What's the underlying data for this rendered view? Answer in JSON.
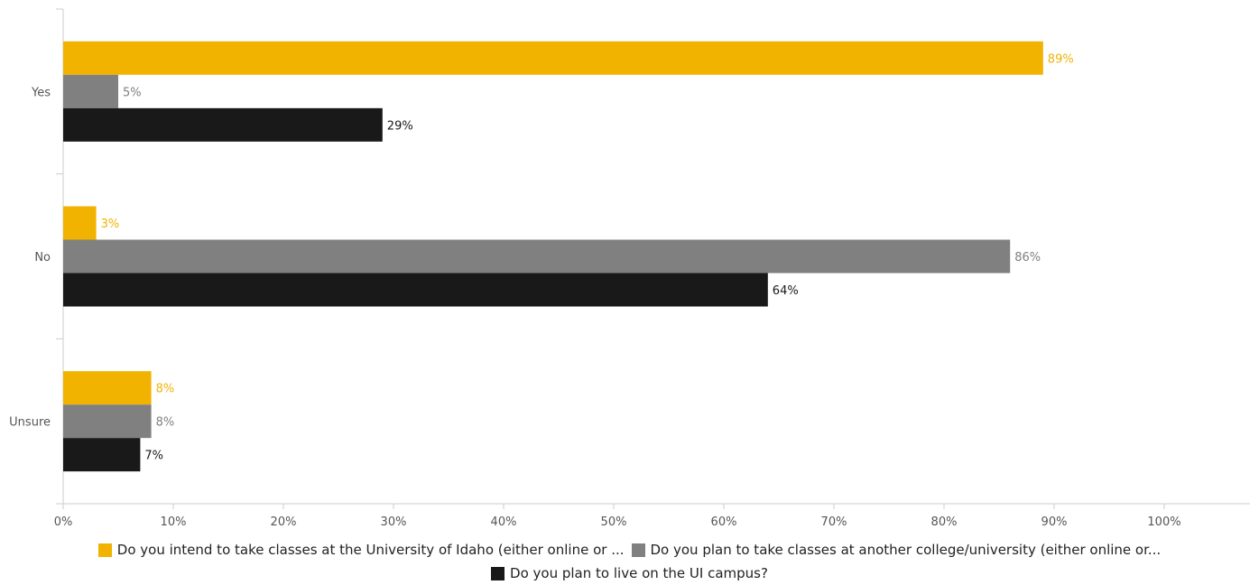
{
  "chart_data": {
    "type": "bar",
    "orientation": "horizontal",
    "categories": [
      "Yes",
      "No",
      "Unsure"
    ],
    "series": [
      {
        "name": "Do you intend to take classes at the University of Idaho (either online or ...",
        "color": "#F1B300",
        "values": [
          89,
          3,
          8
        ],
        "labels": [
          "89%",
          "3%",
          "8%"
        ]
      },
      {
        "name": "Do you plan to take classes at another college/university (either online or...",
        "color": "#808080",
        "values": [
          5,
          86,
          8
        ],
        "labels": [
          "5%",
          "86%",
          "8%"
        ]
      },
      {
        "name": "Do you plan to live on the UI campus?",
        "color": "#191919",
        "values": [
          29,
          64,
          7
        ],
        "labels": [
          "29%",
          "64%",
          "7%"
        ]
      }
    ],
    "xlim": [
      0,
      100
    ],
    "xticks": [
      "0%",
      "10%",
      "20%",
      "30%",
      "40%",
      "50%",
      "60%",
      "70%",
      "80%",
      "90%",
      "100%"
    ],
    "grid": false,
    "legend_position": "bottom"
  }
}
